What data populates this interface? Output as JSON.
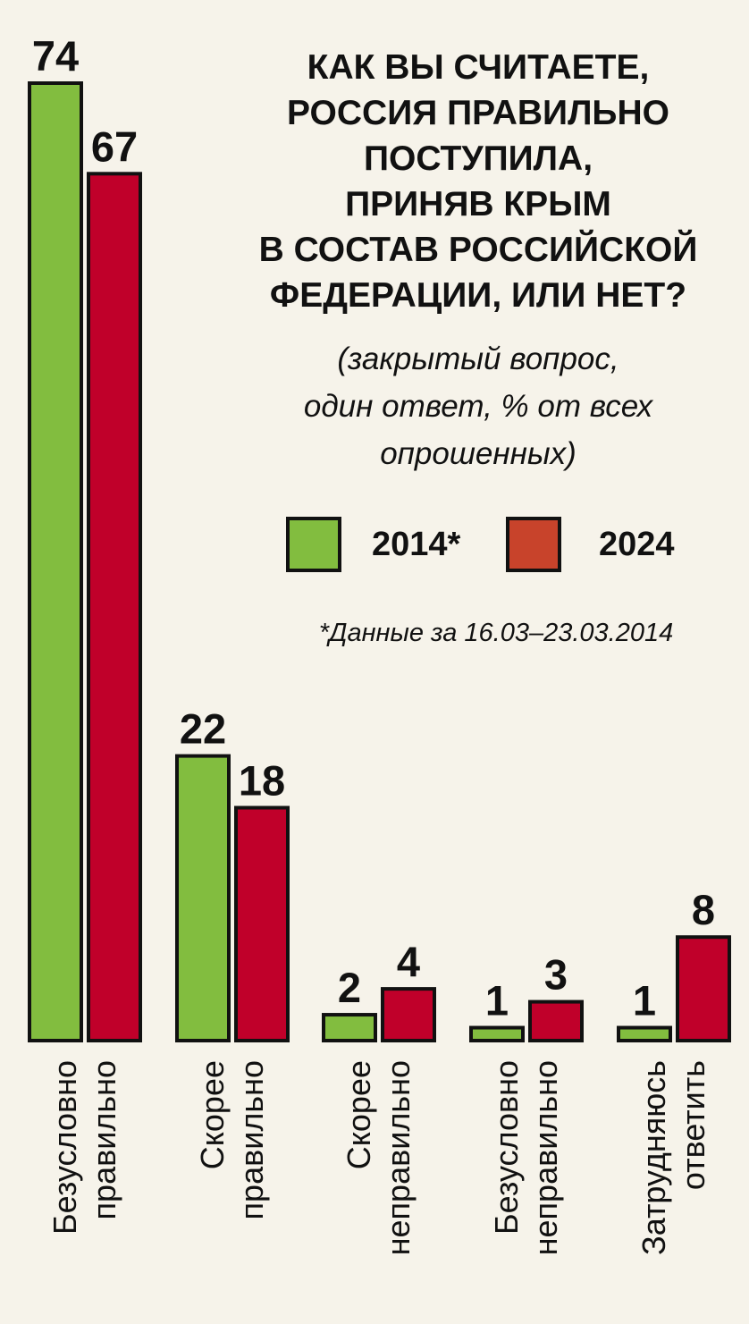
{
  "chart_data": {
    "type": "bar",
    "title": "КАК ВЫ СЧИТАЕТЕ, РОССИЯ ПРАВИЛЬНО ПОСТУПИЛА, ПРИНЯВ КРЫМ В СОСТАВ РОССИЙСКОЙ ФЕДЕРАЦИИ, ИЛИ НЕТ?",
    "title_lines": [
      "КАК ВЫ СЧИТАЕТЕ,",
      "РОССИЯ ПРАВИЛЬНО",
      "ПОСТУПИЛА,",
      "ПРИНЯВ КРЫМ",
      "В СОСТАВ РОССИЙСКОЙ",
      "ФЕДЕРАЦИИ, ИЛИ НЕТ?"
    ],
    "subtitle": "(закрытый вопрос, один ответ, % от всех опрошенных)",
    "subtitle_lines": [
      "(закрытый вопрос,",
      "один ответ, % от всех",
      "опрошенных)"
    ],
    "footnote": "*Данные за 16.03–23.03.2014",
    "categories": [
      [
        "Безусловно",
        "правильно"
      ],
      [
        "Скорее",
        "правильно"
      ],
      [
        "Скорее",
        "неправильно"
      ],
      [
        "Безусловно",
        "неправильно"
      ],
      [
        "Затрудняюсь",
        "ответить"
      ]
    ],
    "series": [
      {
        "name": "2014*",
        "color": "#82bd3f",
        "values": [
          74,
          22,
          2,
          1,
          1
        ]
      },
      {
        "name": "2024",
        "color": "#c0002a",
        "legend_color": "#c8432b",
        "values": [
          67,
          18,
          4,
          3,
          8
        ]
      }
    ],
    "ylim": [
      0,
      74
    ],
    "legend_position": "top-right",
    "grid": false
  }
}
